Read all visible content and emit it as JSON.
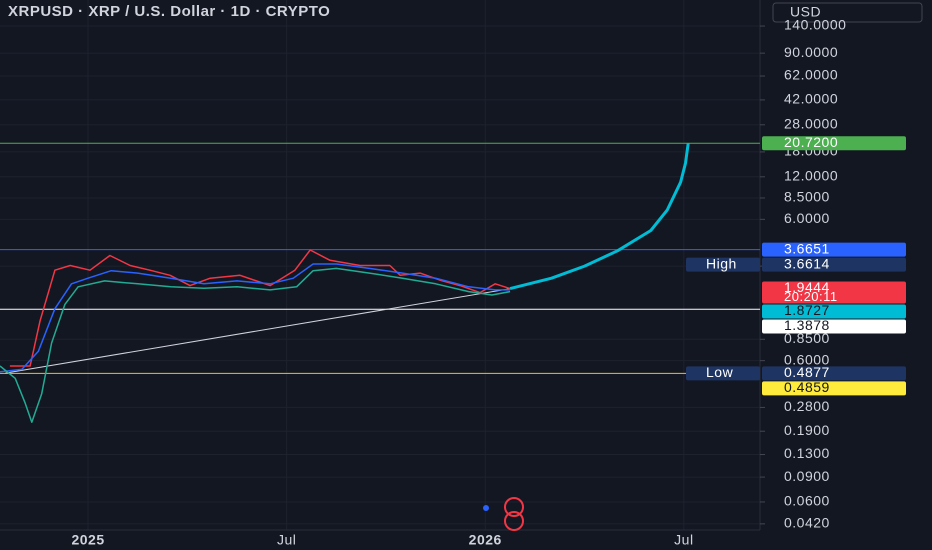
{
  "chart_data": {
    "type": "line",
    "title": "XRPUSD · XRP / U.S. Dollar · 1D · CRYPTO",
    "currency": "USD",
    "log_scale": true,
    "grid": true,
    "ylim": [
      0.038,
      214
    ],
    "yticks": [
      {
        "value": 140,
        "label": "140.0000"
      },
      {
        "value": 90,
        "label": "90.0000"
      },
      {
        "value": 62,
        "label": "62.0000"
      },
      {
        "value": 42,
        "label": "42.0000"
      },
      {
        "value": 28,
        "label": "28.0000"
      },
      {
        "value": 18,
        "label": "18.0000"
      },
      {
        "value": 12,
        "label": "12.0000"
      },
      {
        "value": 8.5,
        "label": "8.5000"
      },
      {
        "value": 6,
        "label": "6.0000"
      },
      {
        "value": 2.8,
        "label": "2.8000"
      },
      {
        "value": 0.85,
        "label": "0.8500"
      },
      {
        "value": 0.6,
        "label": "0.6000"
      },
      {
        "value": 0.28,
        "label": "0.2800"
      },
      {
        "value": 0.19,
        "label": "0.1900"
      },
      {
        "value": 0.13,
        "label": "0.1300"
      },
      {
        "value": 0.09,
        "label": "0.0900"
      },
      {
        "value": 0.06,
        "label": "0.0600"
      },
      {
        "value": 0.042,
        "label": "0.0420"
      }
    ],
    "xlim": [
      -2.66,
      20.3
    ],
    "xticks": [
      {
        "value": 0,
        "label": "2025"
      },
      {
        "value": 6,
        "label": "Jul"
      },
      {
        "value": 12,
        "label": "2026"
      },
      {
        "value": 18,
        "label": "Jul"
      }
    ],
    "series": [
      {
        "name": "Price",
        "color": "#f23645",
        "x": [
          -2.36,
          -1.75,
          -1.45,
          -1.0,
          -0.54,
          0.06,
          0.66,
          1.27,
          1.87,
          2.48,
          3.08,
          3.69,
          4.59,
          5.5,
          6.25,
          6.71,
          7.31,
          8.22,
          9.12,
          9.43,
          10.03,
          10.63,
          11.24,
          11.84,
          12.3,
          12.75
        ],
        "values": [
          0.55,
          0.55,
          1.15,
          2.62,
          2.83,
          2.62,
          3.33,
          2.83,
          2.62,
          2.41,
          2.04,
          2.3,
          2.41,
          2.04,
          2.62,
          3.64,
          3.08,
          2.83,
          2.83,
          2.41,
          2.5,
          2.23,
          2.04,
          1.82,
          2.1,
          1.94
        ]
      },
      {
        "name": "MA",
        "color": "#2962ff",
        "x": [
          -2.66,
          -2.0,
          -1.5,
          -1.0,
          -0.5,
          0,
          0.7,
          1.5,
          2.5,
          3.5,
          4.5,
          5.5,
          6.2,
          6.8,
          7.5,
          8.5,
          9.5,
          10.5,
          11.5,
          12.3,
          12.75
        ],
        "values": [
          0.5,
          0.52,
          0.7,
          1.4,
          2.1,
          2.3,
          2.6,
          2.5,
          2.3,
          2.1,
          2.2,
          2.1,
          2.3,
          2.9,
          2.9,
          2.7,
          2.5,
          2.3,
          2.0,
          1.9,
          1.9
        ]
      },
      {
        "name": "Lower",
        "color": "#22ab94",
        "x": [
          -2.66,
          -2.2,
          -1.9,
          -1.7,
          -1.4,
          -1.1,
          -0.7,
          -0.3,
          0.5,
          1.5,
          2.5,
          3.5,
          4.5,
          5.5,
          6.3,
          6.8,
          7.5,
          8.5,
          9.5,
          10.5,
          11.5,
          12.2,
          12.75
        ],
        "values": [
          0.55,
          0.45,
          0.3,
          0.22,
          0.35,
          0.8,
          1.5,
          2.0,
          2.2,
          2.1,
          2.0,
          1.95,
          2.0,
          1.9,
          2.0,
          2.6,
          2.7,
          2.5,
          2.3,
          2.1,
          1.85,
          1.75,
          1.85
        ]
      },
      {
        "name": "Projection",
        "color": "#00bcd4",
        "x": [
          12.75,
          14,
          15,
          16,
          17,
          17.5,
          17.9,
          18.05,
          18.13
        ],
        "values": [
          1.94,
          2.3,
          2.8,
          3.6,
          5.0,
          7.0,
          11.0,
          15.0,
          20.72
        ]
      }
    ],
    "trendline": {
      "color": "#d1d4dc",
      "x": [
        -2.5,
        12.75
      ],
      "values": [
        0.49,
        1.94
      ]
    },
    "levels": [
      {
        "value": 20.72,
        "label": "20.7200",
        "color": "#4caf50",
        "text_color": "#ffffff",
        "line": true
      },
      {
        "value": 3.6651,
        "label": "3.6651",
        "color": "#2962ff",
        "text_color": "#ffffff",
        "line": false
      },
      {
        "value": 3.6614,
        "label": "3.6614",
        "tag": "High",
        "color": "#1e3462",
        "text_color": "#ffffff",
        "line": true
      },
      {
        "value": 1.9444,
        "label": "1.9444",
        "countdown": "20:20:11",
        "color": "#f23645",
        "text_color": "#ffffff",
        "line": false
      },
      {
        "value": 1.8727,
        "label": "1.8727",
        "color": "#00bcd4",
        "text_color": "#131722",
        "line": false
      },
      {
        "value": 1.3878,
        "label": "1.3878",
        "color": "#ffffff",
        "text_color": "#131722",
        "line": true
      },
      {
        "value": 0.4877,
        "label": "0.4877",
        "tag": "Low",
        "color": "#1e3462",
        "text_color": "#ffffff",
        "line": true
      },
      {
        "value": 0.4859,
        "label": "0.4859",
        "color": "#ffeb3b",
        "text_color": "#131722",
        "line": false
      }
    ]
  }
}
